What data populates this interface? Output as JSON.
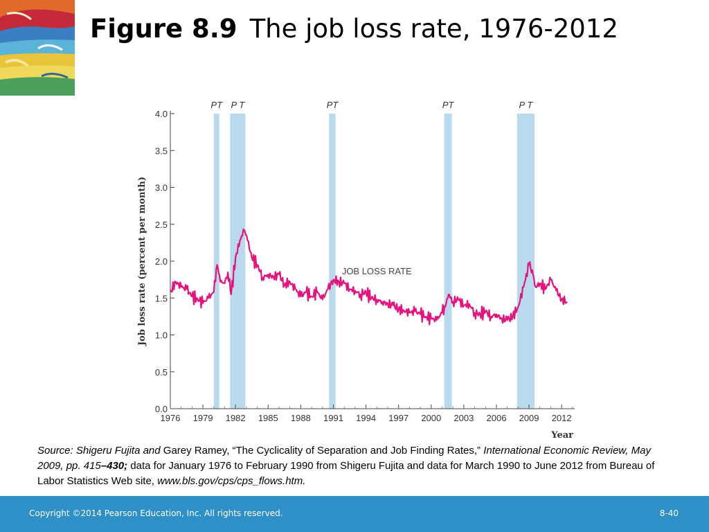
{
  "slide": {
    "figure_label": "Figure 8.9",
    "title": "The job loss rate, 1976-2012",
    "source_italic_1": "Source: Shigeru Fujita and",
    "source_plain_1": " Garey Ramey, “The Cyclicality of Separation and Job Finding Rates,” ",
    "source_italic_2": "International Economic Review, May 2009, pp. 415",
    "source_bold_italic": "–430;",
    "source_plain_2": " data for January 1976 to February 1990 from Shigeru Fujita and data for March 1990 to June 2012 from Bureau of Labor Statistics Web site, ",
    "source_url": "www.bls.gov/cps/cps_flows.htm.",
    "copyright": "Copyright ©2014 Pearson Education, Inc. All rights reserved.",
    "page_number": "8-40"
  },
  "colors": {
    "line": "#e6127e",
    "recession_band": "#b9d9ec",
    "footer": "#2f8fc7"
  },
  "chart_data": {
    "type": "line",
    "xlabel": "Year",
    "ylabel": "Job loss rate (percent per month)",
    "xlim": [
      1976,
      2013.2
    ],
    "ylim": [
      0,
      4.0
    ],
    "yticks": [
      "0.0",
      "0.5",
      "1.0",
      "1.5",
      "2.0",
      "2.5",
      "3.0",
      "3.5",
      "4.0"
    ],
    "xticks": [
      "1976",
      "1979",
      "1982",
      "1985",
      "1988",
      "1991",
      "1994",
      "1997",
      "2000",
      "2003",
      "2006",
      "2009",
      "2012"
    ],
    "series": [
      {
        "name": "JOB LOSS RATE",
        "x": [
          1976.0,
          1976.5,
          1977.0,
          1977.5,
          1978.0,
          1978.5,
          1979.0,
          1979.5,
          1980.0,
          1980.3,
          1980.6,
          1981.0,
          1981.3,
          1981.6,
          1982.0,
          1982.4,
          1982.8,
          1983.1,
          1983.5,
          1984.0,
          1984.5,
          1985.0,
          1985.5,
          1986.0,
          1986.5,
          1987.0,
          1987.5,
          1988.0,
          1988.5,
          1989.0,
          1989.5,
          1990.0,
          1990.5,
          1991.0,
          1991.5,
          1992.0,
          1992.5,
          1993.0,
          1993.5,
          1994.0,
          1994.5,
          1995.0,
          1995.5,
          1996.0,
          1996.5,
          1997.0,
          1997.5,
          1998.0,
          1998.5,
          1999.0,
          1999.5,
          2000.0,
          2000.5,
          2001.0,
          2001.3,
          2001.6,
          2002.0,
          2002.5,
          2003.0,
          2003.5,
          2004.0,
          2004.5,
          2005.0,
          2005.5,
          2006.0,
          2006.5,
          2007.0,
          2007.5,
          2008.0,
          2008.5,
          2009.0,
          2009.3,
          2009.6,
          2010.0,
          2010.5,
          2011.0,
          2011.5,
          2012.0,
          2012.5
        ],
        "y": [
          1.58,
          1.72,
          1.65,
          1.62,
          1.52,
          1.49,
          1.43,
          1.5,
          1.58,
          1.95,
          1.72,
          1.7,
          1.85,
          1.55,
          2.05,
          2.28,
          2.42,
          2.28,
          2.05,
          1.95,
          1.78,
          1.82,
          1.78,
          1.82,
          1.68,
          1.72,
          1.62,
          1.52,
          1.58,
          1.52,
          1.58,
          1.48,
          1.62,
          1.75,
          1.72,
          1.7,
          1.62,
          1.6,
          1.55,
          1.58,
          1.5,
          1.48,
          1.45,
          1.42,
          1.4,
          1.35,
          1.33,
          1.3,
          1.32,
          1.28,
          1.25,
          1.22,
          1.2,
          1.3,
          1.38,
          1.55,
          1.45,
          1.48,
          1.4,
          1.42,
          1.3,
          1.28,
          1.32,
          1.25,
          1.28,
          1.22,
          1.2,
          1.25,
          1.38,
          1.65,
          1.95,
          1.88,
          1.65,
          1.7,
          1.62,
          1.75,
          1.6,
          1.48,
          1.45
        ]
      }
    ],
    "recessions": [
      {
        "label": "PT",
        "start": 1980.0,
        "end": 1980.5
      },
      {
        "label": "P T",
        "start": 1981.5,
        "end": 1982.9
      },
      {
        "label": "PT",
        "start": 1990.6,
        "end": 1991.2
      },
      {
        "label": "PT",
        "start": 2001.2,
        "end": 2001.9
      },
      {
        "label": "P T",
        "start": 2007.9,
        "end": 2009.5
      }
    ],
    "annotations": [
      {
        "text": "JOB LOSS RATE",
        "x": 1995.0,
        "y": 1.82
      }
    ],
    "grid": false
  }
}
